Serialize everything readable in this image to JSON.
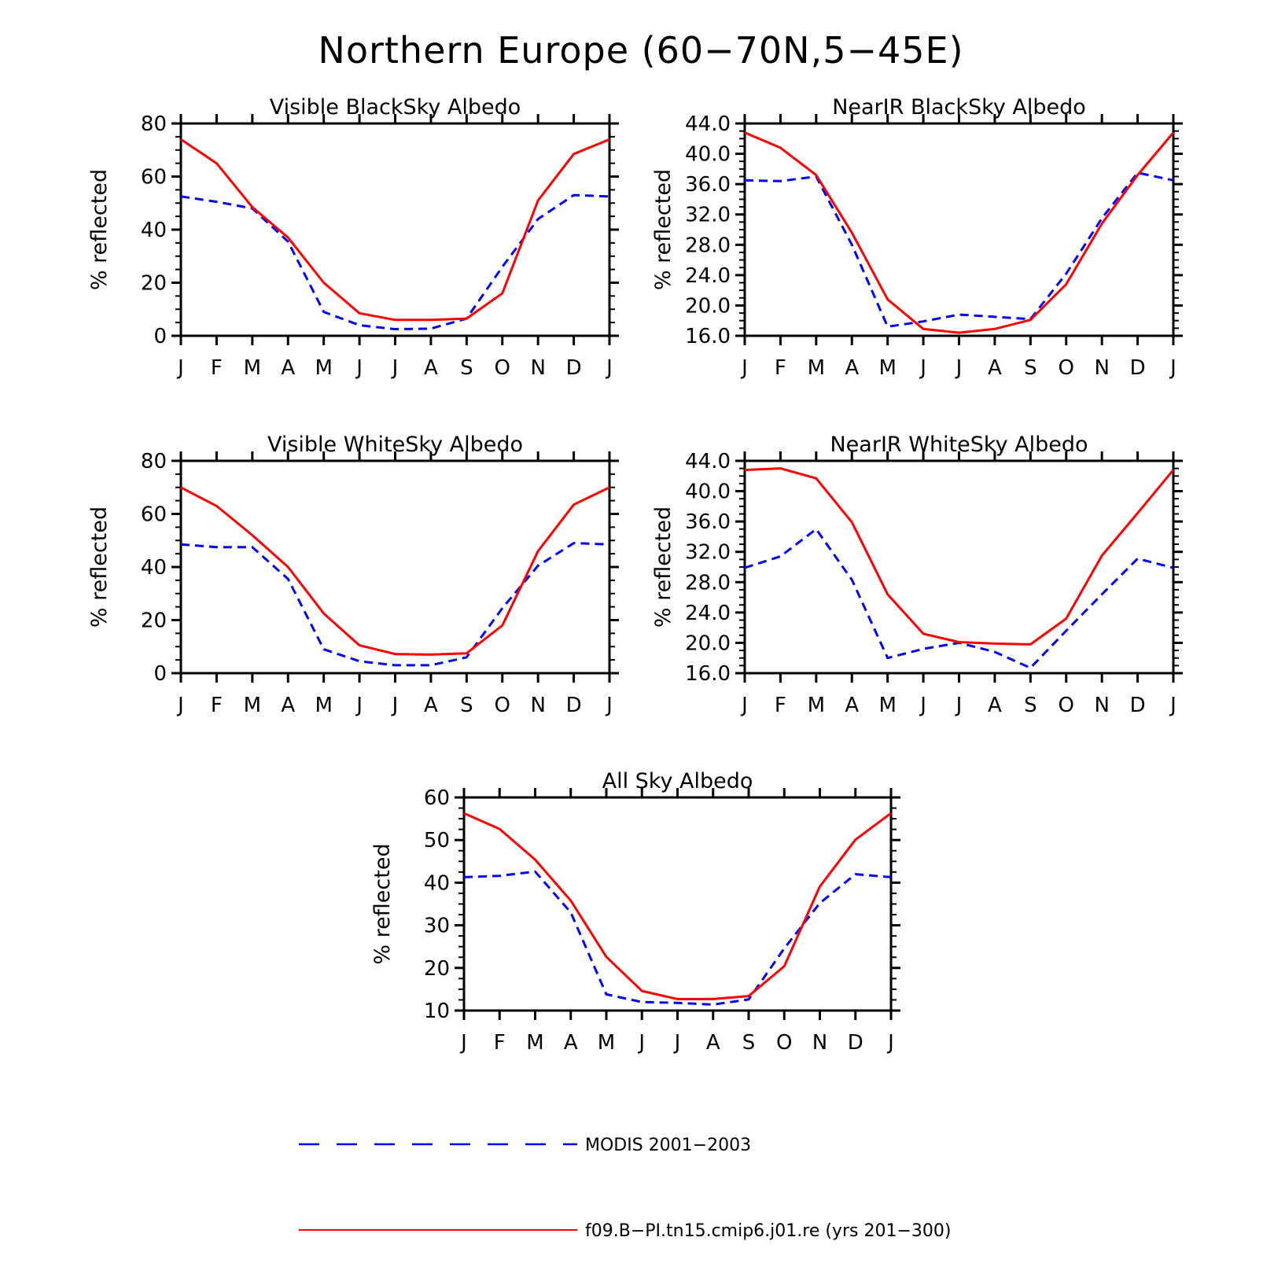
{
  "title": "Northern Europe (60−70N,5−45E)",
  "months": [
    "J",
    "F",
    "M",
    "A",
    "M",
    "J",
    "J",
    "A",
    "S",
    "O",
    "N",
    "D",
    "J"
  ],
  "colors": {
    "modis": "#0000ff",
    "model": "#ff0000"
  },
  "legend": {
    "modis_label": "MODIS 2001−2003",
    "model_label": "f09.B−PI.tn15.cmip6.j01.re (yrs 201−300)"
  },
  "chart_data": [
    {
      "type": "line",
      "title": "Visible BlackSky Albedo",
      "ylabel": "% reflected",
      "ylim": [
        0,
        80
      ],
      "ytick_labels": [
        "0",
        "20",
        "40",
        "60",
        "80"
      ],
      "categories": [
        "J",
        "F",
        "M",
        "A",
        "M",
        "J",
        "J",
        "A",
        "S",
        "O",
        "N",
        "D",
        "J"
      ],
      "series": [
        {
          "name": "MODIS 2001−2003",
          "values": [
            52.5,
            50.5,
            48,
            35.5,
            9,
            4,
            2.5,
            2.7,
            6.5,
            26,
            44,
            53,
            52.5
          ]
        },
        {
          "name": "f09.B−PI.tn15.cmip6.j01.re (yrs 201−300)",
          "values": [
            74,
            65,
            48.5,
            37,
            20,
            8.5,
            6,
            6,
            6.5,
            16,
            51,
            68.5,
            74
          ]
        }
      ]
    },
    {
      "type": "line",
      "title": "NearIR BlackSky Albedo",
      "ylabel": "% reflected",
      "ylim": [
        16,
        44
      ],
      "ytick_labels": [
        "16.0",
        "20.0",
        "24.0",
        "28.0",
        "32.0",
        "36.0",
        "40.0",
        "44.0"
      ],
      "categories": [
        "J",
        "F",
        "M",
        "A",
        "M",
        "J",
        "J",
        "A",
        "S",
        "O",
        "N",
        "D",
        "J"
      ],
      "series": [
        {
          "name": "MODIS 2001−2003",
          "values": [
            36.5,
            36.4,
            37,
            28,
            17.2,
            17.9,
            18.8,
            18.5,
            18.2,
            24.2,
            31.5,
            37.5,
            36.5
          ]
        },
        {
          "name": "f09.B−PI.tn15.cmip6.j01.re (yrs 201−300)",
          "values": [
            42.8,
            40.8,
            37.2,
            29.6,
            20.8,
            16.9,
            16.4,
            16.9,
            18.1,
            22.8,
            30.8,
            37.2,
            42.8
          ]
        }
      ]
    },
    {
      "type": "line",
      "title": "Visible WhiteSky Albedo",
      "ylabel": "% reflected",
      "ylim": [
        0,
        80
      ],
      "ytick_labels": [
        "0",
        "20",
        "40",
        "60",
        "80"
      ],
      "categories": [
        "J",
        "F",
        "M",
        "A",
        "M",
        "J",
        "J",
        "A",
        "S",
        "O",
        "N",
        "D",
        "J"
      ],
      "series": [
        {
          "name": "MODIS 2001−2003",
          "values": [
            48.5,
            47.5,
            47.5,
            35.5,
            9,
            4.5,
            3,
            3,
            6,
            24.5,
            40.5,
            49,
            48.5
          ]
        },
        {
          "name": "f09.B−PI.tn15.cmip6.j01.re (yrs 201−300)",
          "values": [
            70,
            63,
            52,
            40,
            22.5,
            10.5,
            7.2,
            7,
            7.5,
            18,
            46,
            63.5,
            70
          ]
        }
      ]
    },
    {
      "type": "line",
      "title": "NearIR WhiteSky Albedo",
      "ylabel": "% reflected",
      "ylim": [
        16,
        44
      ],
      "ytick_labels": [
        "16.0",
        "20.0",
        "24.0",
        "28.0",
        "32.0",
        "36.0",
        "40.0",
        "44.0"
      ],
      "categories": [
        "J",
        "F",
        "M",
        "A",
        "M",
        "J",
        "J",
        "A",
        "S",
        "O",
        "N",
        "D",
        "J"
      ],
      "series": [
        {
          "name": "MODIS 2001−2003",
          "values": [
            29.9,
            31.4,
            35,
            28.3,
            18,
            19.2,
            20,
            18.8,
            16.7,
            21.6,
            26.4,
            31.1,
            29.9
          ]
        },
        {
          "name": "f09.B−PI.tn15.cmip6.j01.re (yrs 201−300)",
          "values": [
            42.8,
            43,
            41.7,
            35.9,
            26.4,
            21.2,
            20.1,
            19.9,
            19.8,
            23.2,
            31.5,
            37.1,
            42.8
          ]
        }
      ]
    },
    {
      "type": "line",
      "title": "All Sky Albedo",
      "ylabel": "% reflected",
      "ylim": [
        10,
        60
      ],
      "ytick_labels": [
        "10",
        "20",
        "30",
        "40",
        "50",
        "60"
      ],
      "categories": [
        "J",
        "F",
        "M",
        "A",
        "M",
        "J",
        "J",
        "A",
        "S",
        "O",
        "N",
        "D",
        "J"
      ],
      "series": [
        {
          "name": "MODIS 2001−2003",
          "values": [
            41.3,
            41.6,
            42.6,
            33,
            13.8,
            12,
            11.8,
            11.4,
            12.6,
            24.6,
            35.2,
            42,
            41.3
          ]
        },
        {
          "name": "f09.B−PI.tn15.cmip6.j01.re (yrs 201−300)",
          "values": [
            56.3,
            52.6,
            45.4,
            35.8,
            22.6,
            14.6,
            12.7,
            12.7,
            13.4,
            20.4,
            39.1,
            50.1,
            56.3
          ]
        }
      ]
    }
  ]
}
